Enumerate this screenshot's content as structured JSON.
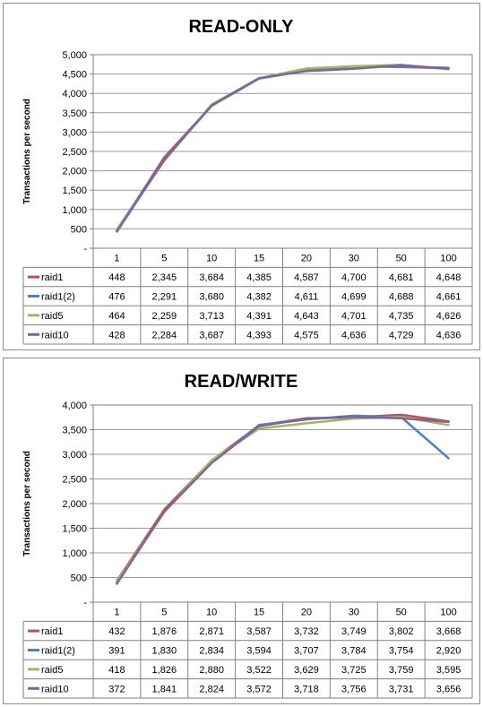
{
  "chart_data": [
    {
      "type": "line",
      "title": "READ-ONLY",
      "ylabel": "Transactions  per second",
      "xlabel": "",
      "categories": [
        "1",
        "5",
        "10",
        "15",
        "20",
        "30",
        "50",
        "100"
      ],
      "ylim": [
        0,
        5000
      ],
      "yticks": [
        0,
        500,
        1000,
        1500,
        2000,
        2500,
        3000,
        3500,
        4000,
        4500,
        5000
      ],
      "ytick_labels": [
        "-",
        "500",
        "1,000",
        "1,500",
        "2,000",
        "2,500",
        "3,000",
        "3,500",
        "4,000",
        "4,500",
        "5,000"
      ],
      "grid": true,
      "legend": "data table below plot",
      "series": [
        {
          "name": "raid1",
          "color": "#c0504d",
          "values": [
            448,
            2345,
            3684,
            4385,
            4587,
            4700,
            4681,
            4648
          ],
          "labels": [
            "448",
            "2,345",
            "3,684",
            "4,385",
            "4,587",
            "4,700",
            "4,681",
            "4,648"
          ]
        },
        {
          "name": "raid1(2)",
          "color": "#4f81bd",
          "values": [
            476,
            2291,
            3680,
            4382,
            4611,
            4699,
            4688,
            4661
          ],
          "labels": [
            "476",
            "2,291",
            "3,680",
            "4,382",
            "4,611",
            "4,699",
            "4,688",
            "4,661"
          ]
        },
        {
          "name": "raid5",
          "color": "#9bbb59",
          "values": [
            464,
            2259,
            3713,
            4391,
            4643,
            4701,
            4735,
            4626
          ],
          "labels": [
            "464",
            "2,259",
            "3,713",
            "4,391",
            "4,643",
            "4,701",
            "4,735",
            "4,626"
          ]
        },
        {
          "name": "raid10",
          "color": "#8064a2",
          "values": [
            428,
            2284,
            3687,
            4393,
            4575,
            4636,
            4729,
            4636
          ],
          "labels": [
            "428",
            "2,284",
            "3,687",
            "4,393",
            "4,575",
            "4,636",
            "4,729",
            "4,636"
          ]
        }
      ]
    },
    {
      "type": "line",
      "title": "READ/WRITE",
      "ylabel": "Transactions  per second",
      "xlabel": "",
      "categories": [
        "1",
        "5",
        "10",
        "15",
        "20",
        "30",
        "50",
        "100"
      ],
      "ylim": [
        0,
        4000
      ],
      "yticks": [
        0,
        500,
        1000,
        1500,
        2000,
        2500,
        3000,
        3500,
        4000
      ],
      "ytick_labels": [
        "-",
        "500",
        "1,000",
        "1,500",
        "2,000",
        "2,500",
        "3,000",
        "3,500",
        "4,000"
      ],
      "grid": true,
      "legend": "data table below plot",
      "series": [
        {
          "name": "raid1",
          "color": "#c0504d",
          "values": [
            432,
            1876,
            2871,
            3587,
            3732,
            3749,
            3802,
            3668
          ],
          "labels": [
            "432",
            "1,876",
            "2,871",
            "3,587",
            "3,732",
            "3,749",
            "3,802",
            "3,668"
          ]
        },
        {
          "name": "raid1(2)",
          "color": "#4f81bd",
          "values": [
            391,
            1830,
            2834,
            3594,
            3707,
            3784,
            3754,
            2920
          ],
          "labels": [
            "391",
            "1,830",
            "2,834",
            "3,594",
            "3,707",
            "3,784",
            "3,754",
            "2,920"
          ]
        },
        {
          "name": "raid5",
          "color": "#9bbb59",
          "values": [
            418,
            1826,
            2880,
            3522,
            3629,
            3725,
            3759,
            3595
          ],
          "labels": [
            "418",
            "1,826",
            "2,880",
            "3,522",
            "3,629",
            "3,725",
            "3,759",
            "3,595"
          ]
        },
        {
          "name": "raid10",
          "color": "#8064a2",
          "values": [
            372,
            1841,
            2824,
            3572,
            3718,
            3756,
            3731,
            3656
          ],
          "labels": [
            "372",
            "1,841",
            "2,824",
            "3,572",
            "3,718",
            "3,756",
            "3,731",
            "3,656"
          ]
        }
      ]
    }
  ]
}
